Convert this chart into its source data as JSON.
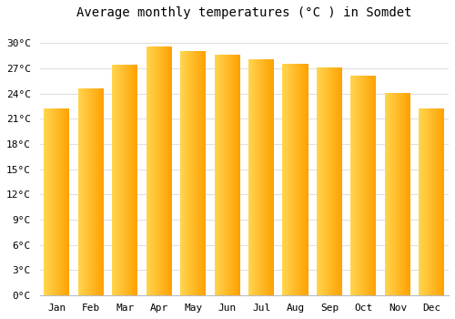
{
  "title": "Average monthly temperatures (°C ) in Somdet",
  "months": [
    "Jan",
    "Feb",
    "Mar",
    "Apr",
    "May",
    "Jun",
    "Jul",
    "Aug",
    "Sep",
    "Oct",
    "Nov",
    "Dec"
  ],
  "temperatures": [
    22.2,
    24.6,
    27.5,
    29.6,
    29.1,
    28.6,
    28.1,
    27.6,
    27.1,
    26.1,
    24.1,
    22.2
  ],
  "bar_color_light": "#FFD54F",
  "bar_color_dark": "#FFA000",
  "background_color": "#FFFFFF",
  "fig_background_color": "#FFFFFF",
  "grid_color": "#E0E0E0",
  "title_fontsize": 10,
  "tick_fontsize": 8,
  "ylim": [
    0,
    32
  ],
  "yticks": [
    0,
    3,
    6,
    9,
    12,
    15,
    18,
    21,
    24,
    27,
    30
  ]
}
